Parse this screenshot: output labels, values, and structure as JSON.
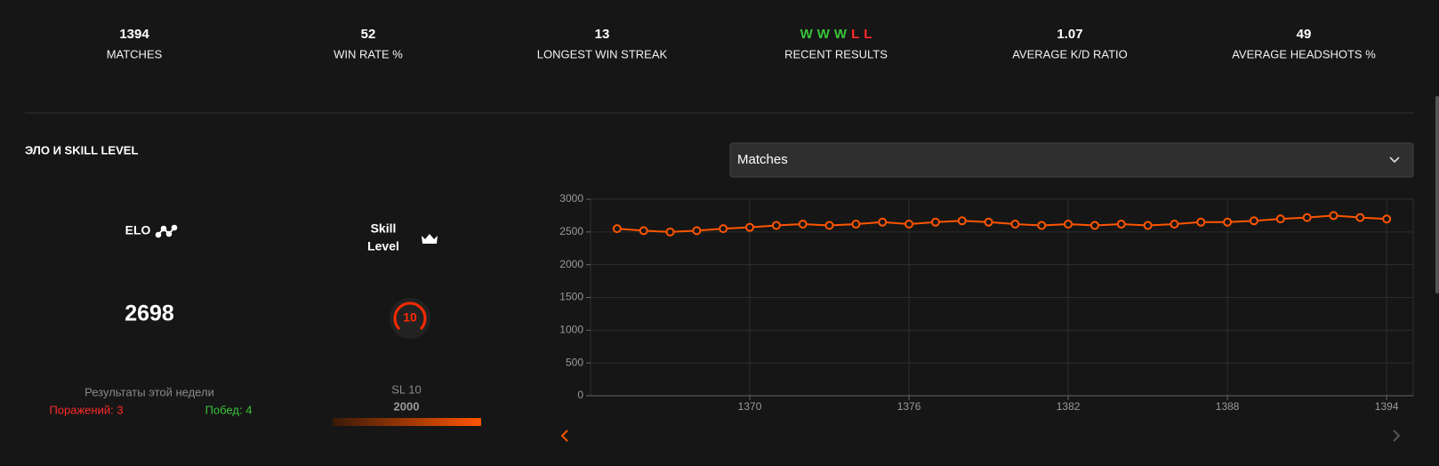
{
  "stats": [
    {
      "value": "1394",
      "label": "MATCHES"
    },
    {
      "value": "52",
      "label": "WIN RATE %"
    },
    {
      "value": "13",
      "label": "LONGEST WIN STREAK"
    },
    {
      "results": [
        "W",
        "W",
        "W",
        "L",
        "L"
      ],
      "label": "RECENT RESULTS"
    },
    {
      "value": "1.07",
      "label": "AVERAGE K/D RATIO"
    },
    {
      "value": "49",
      "label": "AVERAGE HEADSHOTS %"
    }
  ],
  "section_title": "ЭЛО И SKILL LEVEL",
  "dropdown": "Matches",
  "elo": {
    "label": "ELO",
    "value": "2698"
  },
  "skill_level": {
    "label_line1": "Skill",
    "label_line2": "Level",
    "badge": "10",
    "level": "SL 10",
    "threshold": "2000"
  },
  "week": {
    "title": "Результаты этой недели",
    "losses": "Поражений: 3",
    "wins": "Побед: 4"
  },
  "chart_data": {
    "type": "line",
    "x": [
      1365,
      1366,
      1367,
      1368,
      1369,
      1370,
      1371,
      1372,
      1373,
      1374,
      1375,
      1376,
      1377,
      1378,
      1379,
      1380,
      1381,
      1382,
      1383,
      1384,
      1385,
      1386,
      1387,
      1388,
      1389,
      1390,
      1391,
      1392,
      1393,
      1394
    ],
    "series": [
      {
        "name": "ELO",
        "color": "#ff5500",
        "values": [
          2550,
          2520,
          2500,
          2520,
          2550,
          2570,
          2600,
          2620,
          2600,
          2620,
          2650,
          2620,
          2650,
          2670,
          2650,
          2620,
          2600,
          2620,
          2600,
          2620,
          2600,
          2620,
          2650,
          2650,
          2670,
          2700,
          2720,
          2750,
          2720,
          2698
        ]
      }
    ],
    "xlim": [
      1364,
      1395
    ],
    "ylim": [
      0,
      3000
    ],
    "xticks": [
      1370,
      1376,
      1382,
      1388,
      1394
    ],
    "yticks": [
      0,
      500,
      1000,
      1500,
      2000,
      2500,
      3000
    ],
    "grid": true
  }
}
